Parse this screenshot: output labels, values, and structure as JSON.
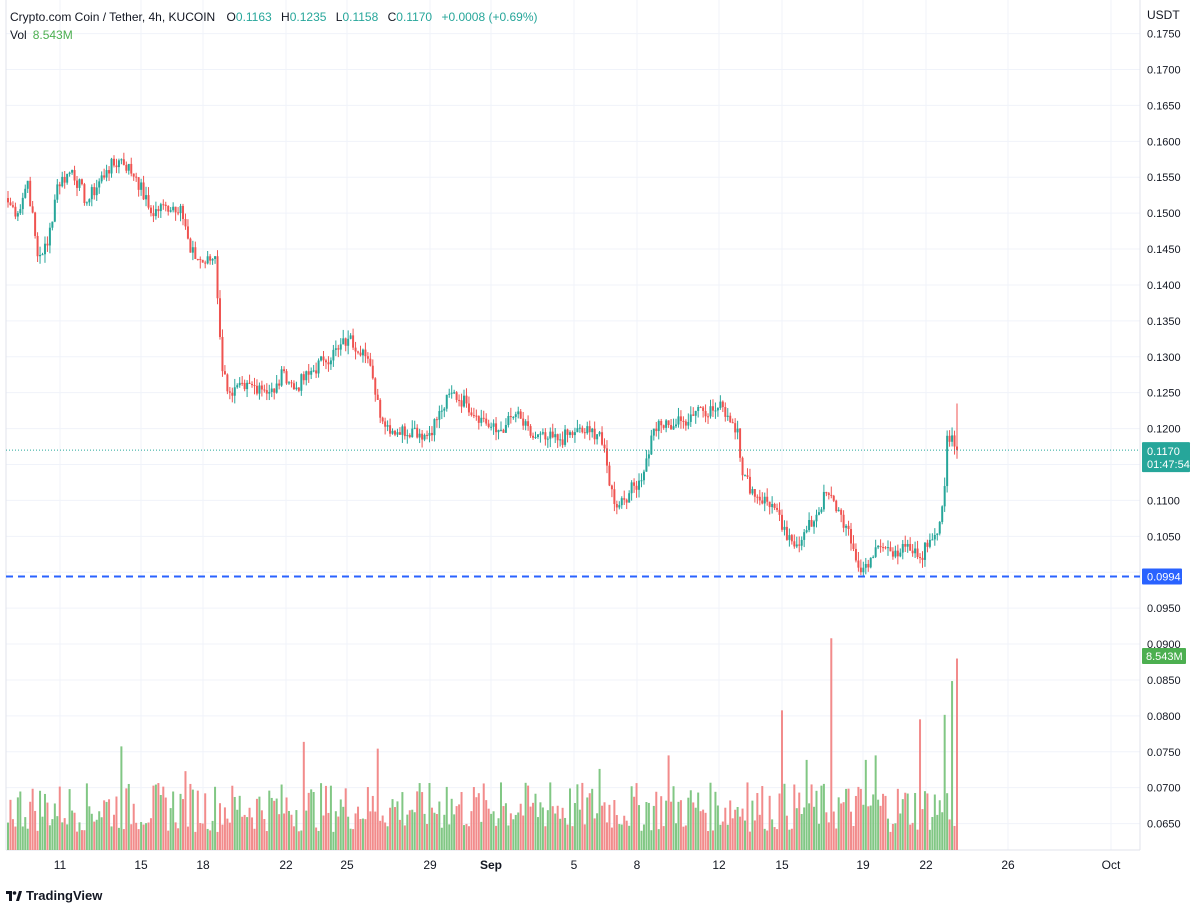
{
  "header": {
    "symbol": "Crypto.com Coin / Tether, 4h, KUCOIN",
    "open_label": "O",
    "open": "0.1163",
    "high_label": "H",
    "high": "0.1235",
    "low_label": "L",
    "low": "0.1158",
    "close_label": "C",
    "close": "0.1170",
    "change": "+0.0008 (+0.69%)",
    "vol_label": "Vol",
    "vol_value": "8.543M"
  },
  "currency": "USDT",
  "footer": {
    "brand": "TradingView"
  },
  "colors": {
    "up": "#26a69a",
    "down": "#ef5350",
    "vol_up": "#81c784",
    "vol_down": "#f28b8b",
    "grid": "#f0f3fa",
    "dashed_line": "#2962ff",
    "volume_badge": "#4caf50"
  },
  "chart_data": {
    "type": "candlestick",
    "timeframe": "4h",
    "y_axis": {
      "min": 0.065,
      "max": 0.178,
      "ticks": [
        "0.1750",
        "0.1700",
        "0.1650",
        "0.1600",
        "0.1550",
        "0.1500",
        "0.1450",
        "0.1400",
        "0.1350",
        "0.1300",
        "0.1250",
        "0.1200",
        "0.1150",
        "0.1100",
        "0.1050",
        "0.1000",
        "0.0950",
        "0.0900",
        "0.0850",
        "0.0800",
        "0.0750",
        "0.0700",
        "0.0650"
      ]
    },
    "x_axis": {
      "labels": [
        "11",
        "15",
        "18",
        "22",
        "25",
        "29",
        "Sep",
        "5",
        "8",
        "12",
        "15",
        "19",
        "22",
        "26",
        "Oct"
      ]
    },
    "current_price": {
      "value": 0.117,
      "label": "0.1170",
      "countdown": "01:47:54"
    },
    "horizontal_line": {
      "value": 0.0994,
      "label": "0.0994",
      "style": "dashed"
    },
    "volume_badge": {
      "label": "8.543M"
    },
    "volume_max_millions": 9.5,
    "anchors": [
      [
        0,
        0.1515
      ],
      [
        4,
        0.15
      ],
      [
        8,
        0.1545
      ],
      [
        12,
        0.144
      ],
      [
        16,
        0.1455
      ],
      [
        20,
        0.154
      ],
      [
        26,
        0.156
      ],
      [
        32,
        0.1515
      ],
      [
        40,
        0.156
      ],
      [
        46,
        0.1575
      ],
      [
        52,
        0.155
      ],
      [
        58,
        0.15
      ],
      [
        64,
        0.151
      ],
      [
        70,
        0.151
      ],
      [
        74,
        0.1445
      ],
      [
        80,
        0.143
      ],
      [
        84,
        0.144
      ],
      [
        87,
        0.128
      ],
      [
        90,
        0.125
      ],
      [
        96,
        0.1255
      ],
      [
        102,
        0.126
      ],
      [
        108,
        0.125
      ],
      [
        112,
        0.128
      ],
      [
        116,
        0.1255
      ],
      [
        122,
        0.1275
      ],
      [
        128,
        0.1295
      ],
      [
        134,
        0.131
      ],
      [
        138,
        0.1325
      ],
      [
        144,
        0.131
      ],
      [
        148,
        0.127
      ],
      [
        152,
        0.121
      ],
      [
        158,
        0.1195
      ],
      [
        164,
        0.12
      ],
      [
        170,
        0.119
      ],
      [
        176,
        0.1225
      ],
      [
        180,
        0.125
      ],
      [
        186,
        0.1235
      ],
      [
        192,
        0.1215
      ],
      [
        198,
        0.1195
      ],
      [
        202,
        0.1205
      ],
      [
        206,
        0.122
      ],
      [
        212,
        0.119
      ],
      [
        218,
        0.1185
      ],
      [
        224,
        0.1185
      ],
      [
        230,
        0.1195
      ],
      [
        236,
        0.1195
      ],
      [
        240,
        0.1195
      ],
      [
        246,
        0.1095
      ],
      [
        252,
        0.111
      ],
      [
        258,
        0.114
      ],
      [
        262,
        0.12
      ],
      [
        268,
        0.1205
      ],
      [
        274,
        0.121
      ],
      [
        280,
        0.123
      ],
      [
        286,
        0.1225
      ],
      [
        290,
        0.123
      ],
      [
        296,
        0.12
      ],
      [
        298,
        0.1135
      ],
      [
        304,
        0.1105
      ],
      [
        310,
        0.1095
      ],
      [
        316,
        0.1045
      ],
      [
        322,
        0.1045
      ],
      [
        328,
        0.108
      ],
      [
        332,
        0.111
      ],
      [
        338,
        0.108
      ],
      [
        342,
        0.104
      ],
      [
        346,
        0.1
      ],
      [
        350,
        0.102
      ],
      [
        354,
        0.1035
      ],
      [
        360,
        0.103
      ],
      [
        366,
        0.103
      ],
      [
        370,
        0.102
      ],
      [
        374,
        0.1045
      ],
      [
        378,
        0.107
      ],
      [
        380,
        0.112
      ],
      [
        381,
        0.119
      ],
      [
        384,
        0.1175
      ],
      [
        385,
        0.117
      ]
    ],
    "volume_spikes": [
      [
        46,
        4.6
      ],
      [
        72,
        3.5
      ],
      [
        120,
        4.8
      ],
      [
        150,
        4.5
      ],
      [
        178,
        2.8
      ],
      [
        200,
        3.0
      ],
      [
        220,
        3.0
      ],
      [
        240,
        3.6
      ],
      [
        268,
        4.2
      ],
      [
        300,
        3.0
      ],
      [
        314,
        6.2
      ],
      [
        324,
        4.0
      ],
      [
        334,
        9.4
      ],
      [
        348,
        4.0
      ],
      [
        352,
        4.2
      ],
      [
        370,
        5.8
      ],
      [
        380,
        6.0
      ],
      [
        383,
        7.5
      ],
      [
        385,
        8.5
      ]
    ]
  }
}
